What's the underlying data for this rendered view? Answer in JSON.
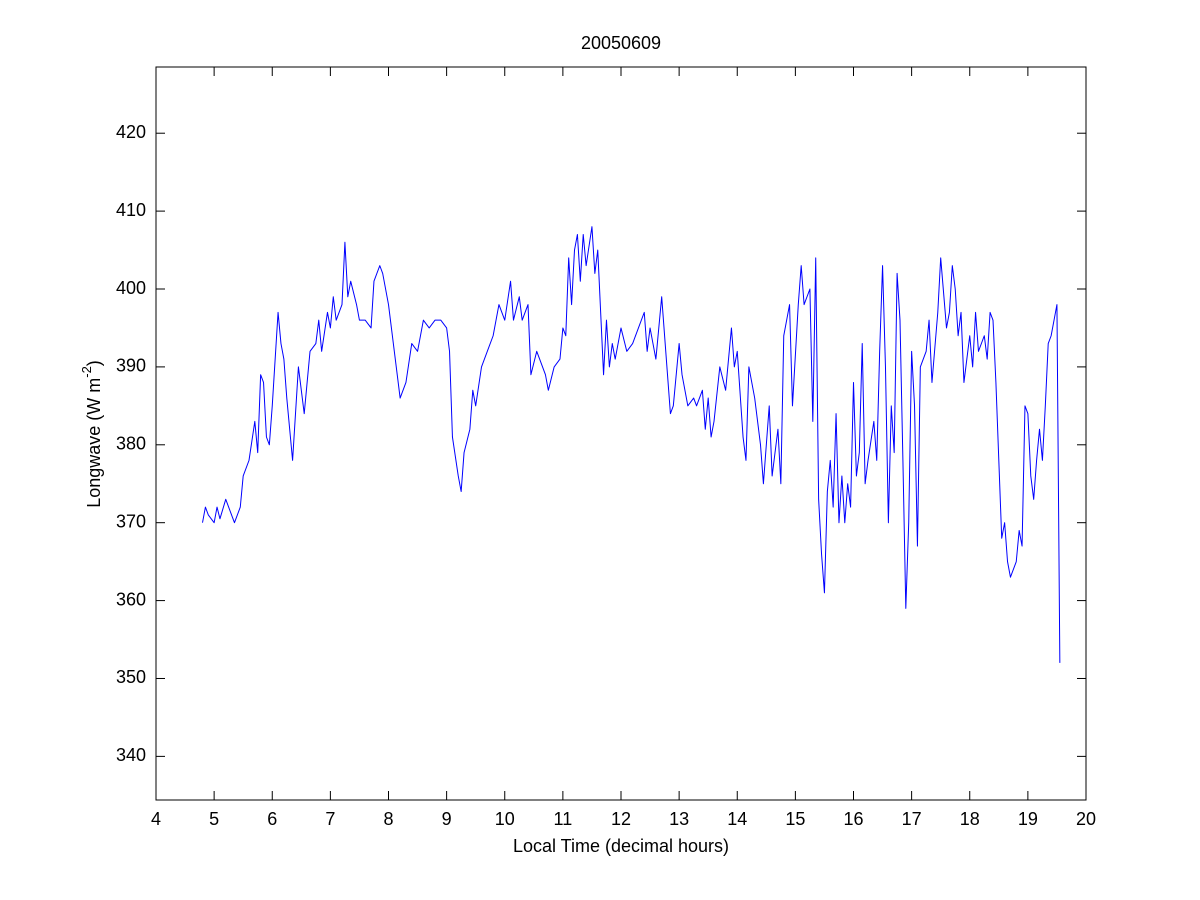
{
  "chart_data": {
    "type": "line",
    "title": "20050609",
    "xlabel": "Local Time (decimal hours)",
    "ylabel_parts": [
      "Longwave (W m",
      "-2",
      ")"
    ],
    "xlim": [
      4,
      20
    ],
    "xticks": [
      4,
      5,
      6,
      7,
      8,
      9,
      10,
      11,
      12,
      13,
      14,
      15,
      16,
      17,
      18,
      19,
      20
    ],
    "ylim": [
      334.4,
      428.5
    ],
    "yticks": [
      340,
      350,
      360,
      370,
      380,
      390,
      400,
      410,
      420
    ],
    "grid": false,
    "series": [
      {
        "color": "#0000ff",
        "x": [
          4.8,
          4.85,
          4.9,
          5.0,
          5.05,
          5.1,
          5.2,
          5.3,
          5.35,
          5.45,
          5.5,
          5.6,
          5.7,
          5.75,
          5.8,
          5.85,
          5.9,
          5.95,
          6.0,
          6.1,
          6.15,
          6.2,
          6.25,
          6.35,
          6.45,
          6.55,
          6.65,
          6.75,
          6.8,
          6.85,
          6.95,
          7.0,
          7.05,
          7.1,
          7.2,
          7.25,
          7.3,
          7.35,
          7.45,
          7.5,
          7.6,
          7.7,
          7.75,
          7.85,
          7.9,
          8.0,
          8.1,
          8.2,
          8.3,
          8.4,
          8.5,
          8.6,
          8.7,
          8.8,
          8.9,
          9.0,
          9.05,
          9.1,
          9.2,
          9.25,
          9.3,
          9.4,
          9.45,
          9.5,
          9.6,
          9.7,
          9.8,
          9.9,
          10.0,
          10.1,
          10.15,
          10.25,
          10.3,
          10.4,
          10.45,
          10.55,
          10.6,
          10.7,
          10.75,
          10.85,
          10.95,
          11.0,
          11.05,
          11.1,
          11.15,
          11.2,
          11.25,
          11.3,
          11.35,
          11.4,
          11.5,
          11.55,
          11.6,
          11.7,
          11.75,
          11.8,
          11.85,
          11.9,
          12.0,
          12.1,
          12.2,
          12.3,
          12.4,
          12.45,
          12.5,
          12.55,
          12.6,
          12.7,
          12.8,
          12.85,
          12.9,
          13.0,
          13.05,
          13.15,
          13.25,
          13.3,
          13.4,
          13.45,
          13.5,
          13.55,
          13.6,
          13.7,
          13.8,
          13.9,
          13.95,
          14.0,
          14.1,
          14.15,
          14.2,
          14.3,
          14.4,
          14.45,
          14.55,
          14.6,
          14.7,
          14.75,
          14.8,
          14.9,
          14.95,
          15.05,
          15.1,
          15.15,
          15.25,
          15.3,
          15.35,
          15.4,
          15.45,
          15.5,
          15.55,
          15.6,
          15.65,
          15.7,
          15.75,
          15.8,
          15.85,
          15.9,
          15.95,
          16.0,
          16.05,
          16.1,
          16.15,
          16.2,
          16.25,
          16.35,
          16.4,
          16.45,
          16.5,
          16.55,
          16.6,
          16.65,
          16.7,
          16.75,
          16.8,
          16.85,
          16.9,
          16.95,
          17.0,
          17.05,
          17.1,
          17.15,
          17.25,
          17.3,
          17.35,
          17.45,
          17.5,
          17.6,
          17.65,
          17.7,
          17.75,
          17.8,
          17.85,
          17.9,
          17.95,
          18.0,
          18.05,
          18.1,
          18.15,
          18.25,
          18.3,
          18.35,
          18.4,
          18.45,
          18.5,
          18.55,
          18.6,
          18.65,
          18.7,
          18.8,
          18.85,
          18.9,
          18.95,
          19.0,
          19.05,
          19.1,
          19.15,
          19.2,
          19.25,
          19.3,
          19.35,
          19.4,
          19.45,
          19.5,
          19.55
        ],
        "values": [
          370,
          372,
          371,
          370,
          372,
          370.5,
          373,
          371,
          370,
          372,
          376,
          378,
          383,
          379,
          389,
          388,
          381,
          380,
          385,
          397,
          393,
          391,
          386,
          378,
          390,
          384,
          392,
          393,
          396,
          392,
          397,
          395,
          399,
          396,
          398,
          406,
          399,
          401,
          398,
          396,
          396,
          395,
          401,
          403,
          402,
          398,
          392,
          386,
          388,
          393,
          392,
          396,
          395,
          396,
          396,
          395,
          392,
          381,
          376,
          374,
          379,
          382,
          387,
          385,
          390,
          392,
          394,
          398,
          396,
          401,
          396,
          399,
          396,
          398,
          389,
          392,
          391,
          389,
          387,
          390,
          391,
          395,
          394,
          404,
          398,
          405,
          407,
          401,
          407,
          403,
          408,
          402,
          405,
          389,
          396,
          390,
          393,
          391,
          395,
          392,
          393,
          395,
          397,
          392,
          395,
          393,
          391,
          399,
          389,
          384,
          385,
          393,
          389,
          385,
          386,
          385,
          387,
          382,
          386,
          381,
          383,
          390,
          387,
          395,
          390,
          392,
          381,
          378,
          390,
          386,
          380,
          375,
          385,
          376,
          382,
          375,
          394,
          398,
          385,
          398,
          403,
          398,
          400,
          383,
          404,
          373,
          366,
          361,
          374,
          378,
          372,
          384,
          370,
          376,
          370,
          375,
          372,
          388,
          376,
          379,
          393,
          375,
          378,
          383,
          378,
          392,
          403,
          390,
          370,
          385,
          379,
          402,
          396,
          378,
          359,
          370,
          392,
          385,
          367,
          390,
          392,
          396,
          388,
          397,
          404,
          395,
          397,
          403,
          400,
          394,
          397,
          388,
          391,
          394,
          390,
          397,
          392,
          394,
          391,
          397,
          396,
          388,
          378,
          368,
          370,
          365,
          363,
          365,
          369,
          367,
          385,
          384,
          376,
          373,
          378,
          382,
          378,
          385,
          393,
          394,
          396,
          398,
          352
        ]
      }
    ]
  }
}
